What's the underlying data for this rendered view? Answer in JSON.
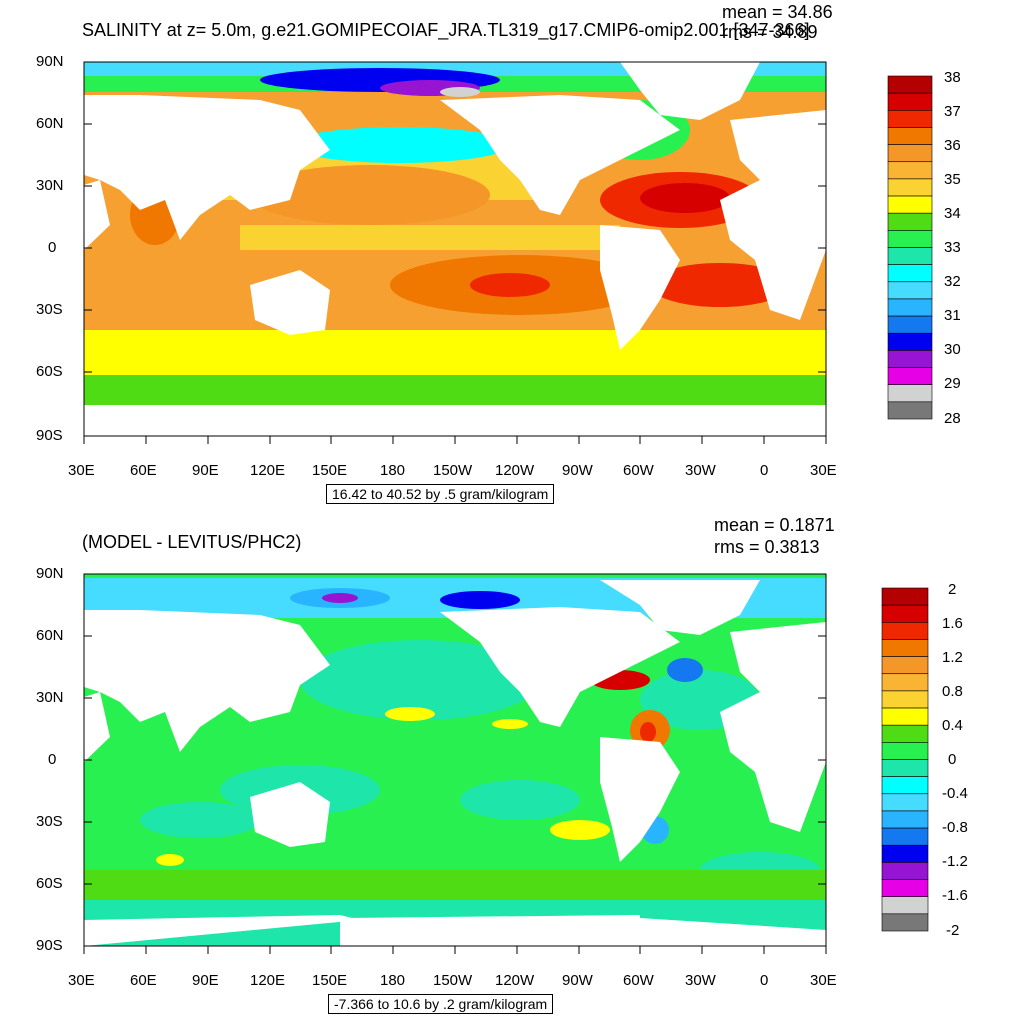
{
  "panels": [
    {
      "title": "SALINITY at z=   5.0m, g.e21.GOMIPECOIAF_JRA.TL319_g17.CMIP6-omip2.001 [347-366]",
      "mean_label": "mean = 34.86",
      "rms_label": "rms = 34.89",
      "range_label": "16.42 to 40.52 by .5 gram/kilogram",
      "y_ticks": [
        "90N",
        "60N",
        "30N",
        "0",
        "30S",
        "60S",
        "90S"
      ],
      "x_ticks": [
        "30E",
        "60E",
        "90E",
        "120E",
        "150E",
        "180",
        "150W",
        "120W",
        "90W",
        "60W",
        "30W",
        "0",
        "30E"
      ],
      "colorbar_labels": [
        "38",
        "37",
        "36",
        "35",
        "34",
        "33",
        "32",
        "31",
        "30",
        "29",
        "28"
      ],
      "colorbar_colors": [
        "#b40000",
        "#d70000",
        "#f02800",
        "#f07800",
        "#f59628",
        "#f8b432",
        "#fad232",
        "#ffff00",
        "#50dc14",
        "#28f050",
        "#1ee6aa",
        "#00ffff",
        "#46dcff",
        "#28b4ff",
        "#1478f0",
        "#0000f0",
        "#9614d2",
        "#e600e6",
        "#d2d2d2",
        "#787878"
      ]
    },
    {
      "title": "(MODEL - LEVITUS/PHC2)",
      "mean_label": "mean = 0.1871",
      "rms_label": "rms = 0.3813",
      "range_label": "-7.366 to 10.6 by .2 gram/kilogram",
      "y_ticks": [
        "90N",
        "60N",
        "30N",
        "0",
        "30S",
        "60S",
        "90S"
      ],
      "x_ticks": [
        "30E",
        "60E",
        "90E",
        "120E",
        "150E",
        "180",
        "150W",
        "120W",
        "90W",
        "60W",
        "30W",
        "0",
        "30E"
      ],
      "colorbar_labels": [
        "2",
        "1.6",
        "1.2",
        "0.8",
        "0.4",
        "0",
        "-0.4",
        "-0.8",
        "-1.2",
        "-1.6",
        "-2"
      ],
      "colorbar_colors": [
        "#b40000",
        "#d70000",
        "#f02800",
        "#f07800",
        "#f59628",
        "#f8b432",
        "#fad232",
        "#ffff00",
        "#50dc14",
        "#28f050",
        "#1ee6aa",
        "#00ffff",
        "#46dcff",
        "#28b4ff",
        "#1478f0",
        "#0000f0",
        "#9614d2",
        "#e600e6",
        "#d2d2d2",
        "#787878"
      ]
    }
  ],
  "colors": {
    "land": "#ffffff",
    "salinity_high": "#e03000",
    "salinity_mid": "#f5a030",
    "salinity_low": "#ffff00",
    "anomaly_green": "#44dd22",
    "anomaly_cyan": "#22eedd"
  }
}
